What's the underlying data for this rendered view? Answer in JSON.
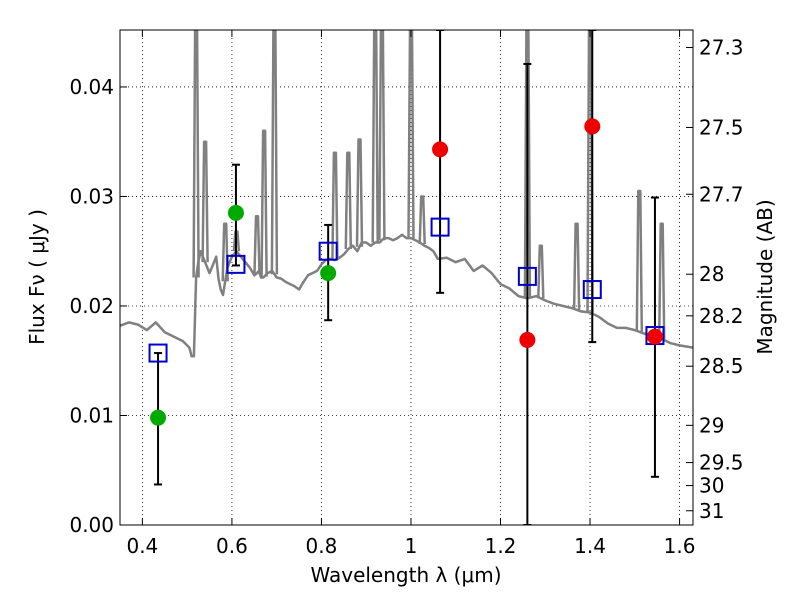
{
  "chart_data": {
    "type": "scatter",
    "title": "",
    "xlabel": "Wavelength  λ (μm)",
    "ylabel": "Flux  Fν  ( μJy )",
    "ylabel_right": "Magnitude (AB)",
    "xlim": [
      0.35,
      1.63
    ],
    "ylim": [
      0.0,
      0.0452
    ],
    "grid": true,
    "x_ticks": [
      0.4,
      0.6,
      0.8,
      1.0,
      1.2,
      1.4,
      1.6
    ],
    "x_tick_labels": [
      "0.4",
      "0.6",
      "0.8",
      "1",
      "1.2",
      "1.4",
      "1.6"
    ],
    "y_ticks": [
      0.0,
      0.01,
      0.02,
      0.03,
      0.04
    ],
    "y_tick_labels": [
      "0.00",
      "0.01",
      "0.02",
      "0.03",
      "0.04"
    ],
    "right_ticks": [
      {
        "label": "27.3",
        "flux": 0.0436
      },
      {
        "label": "27.5",
        "flux": 0.0363
      },
      {
        "label": "27.7",
        "flux": 0.0302
      },
      {
        "label": "28",
        "flux": 0.0229
      },
      {
        "label": "28.2",
        "flux": 0.0191
      },
      {
        "label": "28.5",
        "flux": 0.0145
      },
      {
        "label": "29",
        "flux": 0.0091
      },
      {
        "label": "29.5",
        "flux": 0.0057
      },
      {
        "label": "30",
        "flux": 0.0036
      },
      {
        "label": "31",
        "flux": 0.0013
      }
    ],
    "series": [
      {
        "kind": "spectrum",
        "color": "#808080",
        "x": [
          0.35,
          0.37,
          0.39,
          0.41,
          0.43,
          0.45,
          0.47,
          0.49,
          0.505,
          0.51,
          0.515,
          0.52,
          0.525,
          0.53,
          0.54,
          0.55,
          0.56,
          0.565,
          0.57,
          0.575,
          0.58,
          0.59,
          0.6,
          0.61,
          0.62,
          0.63,
          0.64,
          0.65,
          0.656,
          0.66,
          0.665,
          0.67,
          0.68,
          0.69,
          0.7,
          0.71,
          0.72,
          0.73,
          0.74,
          0.75,
          0.76,
          0.77,
          0.78,
          0.79,
          0.8,
          0.81,
          0.82,
          0.83,
          0.84,
          0.85,
          0.86,
          0.87,
          0.88,
          0.89,
          0.9,
          0.91,
          0.92,
          0.93,
          0.94,
          0.95,
          0.96,
          0.97,
          0.98,
          0.99,
          1.0,
          1.01,
          1.02,
          1.03,
          1.04,
          1.05,
          1.06,
          1.08,
          1.1,
          1.12,
          1.14,
          1.16,
          1.18,
          1.2,
          1.22,
          1.24,
          1.26,
          1.28,
          1.3,
          1.32,
          1.34,
          1.36,
          1.38,
          1.4,
          1.42,
          1.44,
          1.46,
          1.48,
          1.5,
          1.52,
          1.54,
          1.56,
          1.58,
          1.6,
          1.63
        ],
        "values": [
          0.0182,
          0.0185,
          0.0183,
          0.0178,
          0.0185,
          0.0176,
          0.0172,
          0.0168,
          0.0162,
          0.0154,
          0.0154,
          0.0226,
          0.024,
          0.025,
          0.024,
          0.023,
          0.024,
          0.0245,
          0.0225,
          0.0215,
          0.021,
          0.0235,
          0.0245,
          0.025,
          0.0245,
          0.024,
          0.0235,
          0.0228,
          0.023,
          0.0232,
          0.0226,
          0.0226,
          0.023,
          0.0232,
          0.0226,
          0.0225,
          0.0222,
          0.022,
          0.0218,
          0.0215,
          0.0222,
          0.0228,
          0.023,
          0.0232,
          0.0238,
          0.0242,
          0.0243,
          0.0242,
          0.0244,
          0.0247,
          0.0252,
          0.0255,
          0.025,
          0.0258,
          0.0258,
          0.0255,
          0.0258,
          0.0258,
          0.0262,
          0.0262,
          0.026,
          0.0262,
          0.0265,
          0.0262,
          0.0262,
          0.026,
          0.0258,
          0.0255,
          0.0253,
          0.025,
          0.0243,
          0.0244,
          0.024,
          0.0243,
          0.0232,
          0.0237,
          0.023,
          0.022,
          0.0216,
          0.0209,
          0.0207,
          0.0209,
          0.0205,
          0.0202,
          0.02,
          0.0198,
          0.0195,
          0.0194,
          0.019,
          0.0184,
          0.018,
          0.018,
          0.0178,
          0.0175,
          0.0172,
          0.017,
          0.0166,
          0.0164,
          0.0162
        ]
      },
      {
        "kind": "emission_lines",
        "color": "#808080",
        "lines": [
          {
            "x": 0.52,
            "peak": 0.0452
          },
          {
            "x": 0.54,
            "peak": 0.035
          },
          {
            "x": 0.585,
            "peak": 0.0275
          },
          {
            "x": 0.61,
            "peak": 0.0268
          },
          {
            "x": 0.656,
            "peak": 0.0282
          },
          {
            "x": 0.672,
            "peak": 0.036
          },
          {
            "x": 0.695,
            "peak": 0.0452
          },
          {
            "x": 0.83,
            "peak": 0.034
          },
          {
            "x": 0.86,
            "peak": 0.034
          },
          {
            "x": 0.885,
            "peak": 0.0352
          },
          {
            "x": 0.92,
            "peak": 0.0452
          },
          {
            "x": 0.935,
            "peak": 0.0452
          },
          {
            "x": 1.0,
            "peak": 0.0452
          },
          {
            "x": 1.025,
            "peak": 0.03
          },
          {
            "x": 1.26,
            "peak": 0.0452
          },
          {
            "x": 1.29,
            "peak": 0.0255
          },
          {
            "x": 1.37,
            "peak": 0.0275
          },
          {
            "x": 1.4,
            "peak": 0.0452
          },
          {
            "x": 1.51,
            "peak": 0.0305
          },
          {
            "x": 1.56,
            "peak": 0.0275
          }
        ]
      },
      {
        "kind": "model_squares",
        "color": "#0000cc",
        "x": [
          0.435,
          0.609,
          0.815,
          1.065,
          1.26,
          1.405,
          1.545
        ],
        "values": [
          0.0157,
          0.0238,
          0.025,
          0.0272,
          0.0227,
          0.0215,
          0.0173
        ]
      },
      {
        "kind": "green_points",
        "color": "#00aa00",
        "x": [
          0.435,
          0.609,
          0.815
        ],
        "values": [
          0.0098,
          0.0285,
          0.023
        ]
      },
      {
        "kind": "red_points",
        "color": "#ee0000",
        "x": [
          1.065,
          1.26,
          1.405,
          1.545
        ],
        "values": [
          0.0343,
          0.0169,
          0.0364,
          0.0172
        ]
      },
      {
        "kind": "error_bars",
        "color": "#000000",
        "bars": [
          {
            "x": 0.435,
            "low": 0.0037,
            "high": 0.0157
          },
          {
            "x": 0.609,
            "low": 0.0237,
            "high": 0.0329
          },
          {
            "x": 0.815,
            "low": 0.0187,
            "high": 0.0274
          },
          {
            "x": 1.065,
            "low": 0.0212,
            "high": 0.0452
          },
          {
            "x": 1.26,
            "low": 0.0,
            "high": 0.0421
          },
          {
            "x": 1.405,
            "low": 0.0167,
            "high": 0.0452
          },
          {
            "x": 1.545,
            "low": 0.0044,
            "high": 0.0299
          }
        ]
      }
    ]
  }
}
